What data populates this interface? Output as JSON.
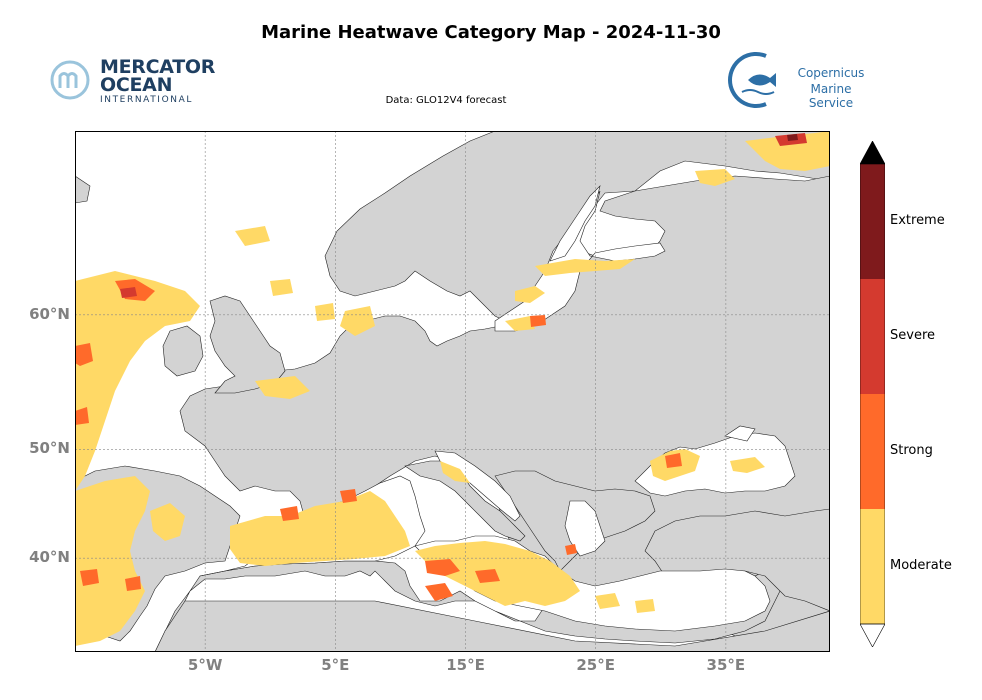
{
  "header": {
    "title": "Marine Heatwave Category Map - 2024-11-30",
    "subtitle": "Data: GLO12V4 forecast"
  },
  "logos": {
    "left": {
      "line1": "MERCATOR",
      "line2": "OCEAN",
      "line3": "INTERNATIONAL"
    },
    "right": {
      "line1": "Copernicus",
      "line2": "Marine Service"
    }
  },
  "map": {
    "extent": {
      "lon_min": -15,
      "lon_max": 43,
      "lat_min": 30,
      "lat_max": 70
    },
    "grid": true,
    "colors": {
      "land": "#d3d3d3",
      "sea": "#ffffff",
      "coast": "#000000",
      "grid": "#888888"
    }
  },
  "axes": {
    "lat_ticks": [
      {
        "value": 40,
        "label": "40°N"
      },
      {
        "value": 50,
        "label": "50°N"
      },
      {
        "value": 60,
        "label": "60°N"
      }
    ],
    "lon_ticks": [
      {
        "value": -5,
        "label": "5°W"
      },
      {
        "value": 5,
        "label": "5°E"
      },
      {
        "value": 15,
        "label": "15°E"
      },
      {
        "value": 25,
        "label": "25°E"
      },
      {
        "value": 35,
        "label": "35°E"
      }
    ]
  },
  "legend": {
    "categories": [
      {
        "name": "Moderate",
        "color": "#ffd966"
      },
      {
        "name": "Strong",
        "color": "#ff6a2a"
      },
      {
        "name": "Severe",
        "color": "#d43a2f"
      },
      {
        "name": "Extreme",
        "color": "#7f1a1c"
      }
    ],
    "extend_max_color": "#000000",
    "extend_min_color": "#ffffff"
  }
}
